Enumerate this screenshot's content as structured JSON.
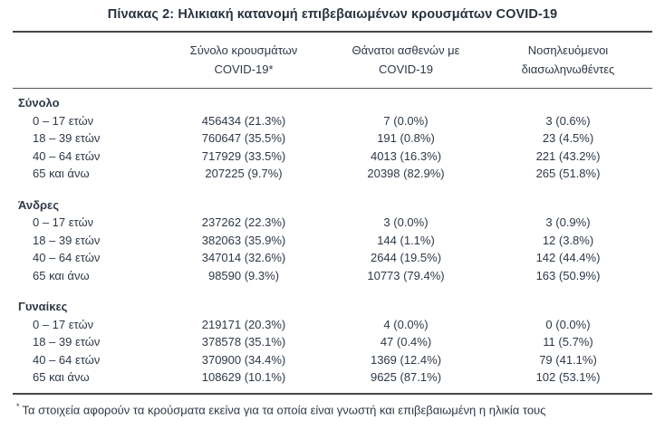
{
  "title": "Πίνακας 2: Ηλικιακή κατανομή επιβεβαιωμένων κρουσμάτων COVID-19",
  "table": {
    "columns": [
      {
        "line1": "Σύνολο κρουσμάτων",
        "line2": "COVID-19*"
      },
      {
        "line1": "Θάνατοι ασθενών με",
        "line2": "COVID-19"
      },
      {
        "line1": "Νοσηλευόμενοι",
        "line2": "διασωληνωθέντες"
      }
    ],
    "sections": [
      {
        "name": "Σύνολο",
        "rows": [
          {
            "label": "0 – 17 ετών",
            "cases": "456434 (21.3%)",
            "deaths": "7 (0.0%)",
            "intubated": "3 (0.6%)"
          },
          {
            "label": "18 – 39 ετών",
            "cases": "760647 (35.5%)",
            "deaths": "191 (0.8%)",
            "intubated": "23 (4.5%)"
          },
          {
            "label": "40 – 64 ετών",
            "cases": "717929 (33.5%)",
            "deaths": "4013 (16.3%)",
            "intubated": "221 (43.2%)"
          },
          {
            "label": "65 και άνω",
            "cases": "207225 (9.7%)",
            "deaths": "20398 (82.9%)",
            "intubated": "265 (51.8%)"
          }
        ]
      },
      {
        "name": "Άνδρες",
        "rows": [
          {
            "label": "0 – 17 ετών",
            "cases": "237262 (22.3%)",
            "deaths": "3 (0.0%)",
            "intubated": "3 (0.9%)"
          },
          {
            "label": "18 – 39 ετών",
            "cases": "382063 (35.9%)",
            "deaths": "144 (1.1%)",
            "intubated": "12 (3.8%)"
          },
          {
            "label": "40 – 64 ετών",
            "cases": "347014 (32.6%)",
            "deaths": "2644 (19.5%)",
            "intubated": "142 (44.4%)"
          },
          {
            "label": "65 και άνω",
            "cases": "98590 (9.3%)",
            "deaths": "10773 (79.4%)",
            "intubated": "163 (50.9%)"
          }
        ]
      },
      {
        "name": "Γυναίκες",
        "rows": [
          {
            "label": "0 – 17 ετών",
            "cases": "219171 (20.3%)",
            "deaths": "4 (0.0%)",
            "intubated": "0 (0.0%)"
          },
          {
            "label": "18 – 39 ετών",
            "cases": "378578 (35.1%)",
            "deaths": "47 (0.4%)",
            "intubated": "11 (5.7%)"
          },
          {
            "label": "40 – 64 ετών",
            "cases": "370900 (34.4%)",
            "deaths": "1369 (12.4%)",
            "intubated": "79 (41.1%)"
          },
          {
            "label": "65 και άνω",
            "cases": "108629 (10.1%)",
            "deaths": "9625 (87.1%)",
            "intubated": "102 (53.1%)"
          }
        ]
      }
    ]
  },
  "footnote": {
    "marker": "*",
    "text": "Τα στοιχεία αφορούν τα κρούσματα εκείνα για τα οποία είναι γνωστή και επιβεβαιωμένη η ηλικία τους"
  }
}
